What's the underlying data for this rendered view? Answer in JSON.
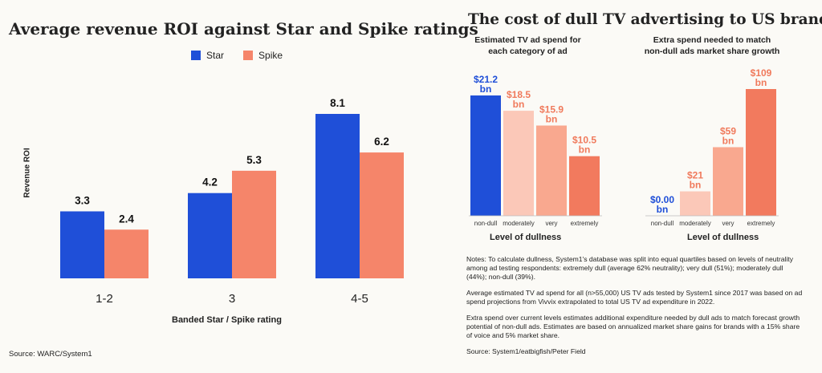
{
  "left": {
    "title": "Average revenue ROI against Star and Spike ratings",
    "source": "Source: WARC/System1"
  },
  "right": {
    "title": "The cost of dull TV advertising to US brands",
    "notes": [
      "Notes: To calculate dullness, System1's database was split into equal quartiles based on levels of neutrality among ad testing respondents: extremely dull (average 62% neutrality); very dull (51%); moderately dull (44%); non-dull (39%).",
      "Average estimated TV ad spend for all (n>55,000) US TV ads tested by System1 since 2017 was based on ad spend projections from Vivvix extrapolated to total US TV ad expenditure in 2022.",
      "Extra spend over current levels estimates additional expenditure needed by dull ads to match forecast growth potential of non-dull ads. Estimates are based on annualized market share gains for brands with a 15% share of voice and 5% market share."
    ],
    "source": "Source: System1/eatbigfish/Peter Field"
  },
  "colors": {
    "star": "#1f4fd8",
    "spike": "#f5856a",
    "spike_light1": "#fbc8b8",
    "spike_light2": "#f9a88f",
    "spike_mid": "#f5856a",
    "spike_dark": "#f27a5e",
    "label_blue": "#1f4fd8",
    "label_orange": "#f07a5c"
  },
  "chart_data": [
    {
      "type": "bar",
      "title": "Average revenue ROI against Star and Spike ratings",
      "xlabel": "Banded Star / Spike rating",
      "ylabel": "Revenue ROI",
      "categories": [
        "1-2",
        "3",
        "4-5"
      ],
      "series": [
        {
          "name": "Star",
          "values": [
            3.3,
            4.2,
            8.1
          ]
        },
        {
          "name": "Spike",
          "values": [
            2.4,
            5.3,
            6.2
          ]
        }
      ],
      "value_labels": {
        "Star": [
          "3.3",
          "4.2",
          "8.1"
        ],
        "Spike": [
          "2.4",
          "5.3",
          "6.2"
        ]
      },
      "ylim": [
        0,
        10
      ],
      "legend": "top-center",
      "grid": false
    },
    {
      "type": "bar",
      "title": "Estimated TV ad spend for\neach category of ad",
      "xlabel": "Level of dullness",
      "ylabel": "",
      "categories": [
        "non-dull",
        "moderately",
        "very",
        "extremely"
      ],
      "values": [
        21.2,
        18.5,
        15.9,
        10.5
      ],
      "value_labels": [
        "$21.2",
        "$18.5",
        "$15.9",
        "$10.5"
      ],
      "value_unit": "bn",
      "ylim": [
        0,
        25
      ],
      "grid": false
    },
    {
      "type": "bar",
      "title": "Extra spend needed to match\nnon-dull ads market share growth",
      "xlabel": "Level of dullness",
      "ylabel": "",
      "categories": [
        "non-dull",
        "moderately",
        "very",
        "extremely"
      ],
      "values": [
        0.0,
        21,
        59,
        109
      ],
      "value_labels": [
        "$0.00",
        "$21",
        "$59",
        "$109"
      ],
      "value_unit": "bn",
      "ylim": [
        0,
        120
      ],
      "grid": false
    }
  ]
}
